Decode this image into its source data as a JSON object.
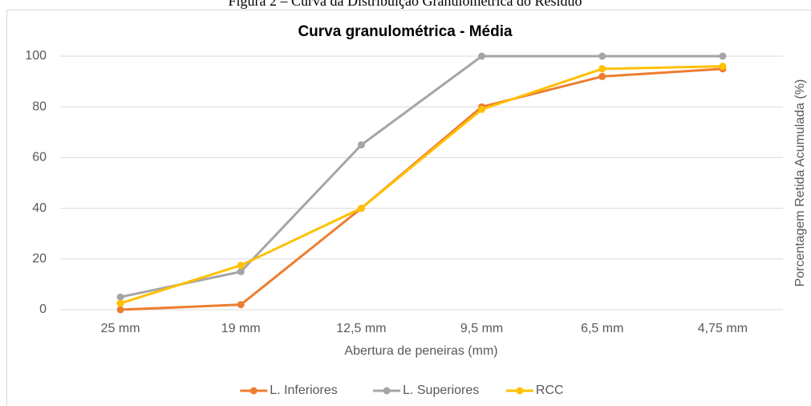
{
  "caption": "Figura 2 – Curva da Distribuição Granulométrica do Resíduo",
  "chart_data": {
    "type": "line",
    "title": "Curva granulométrica - Média",
    "x_label": "Abertura de peneiras (mm)",
    "y_label": "Porcentagem Retida Acumulada  (%)",
    "categories": [
      "25 mm",
      "19 mm",
      "12,5 mm",
      "9,5 mm",
      "6,5 mm",
      "4,75 mm"
    ],
    "series": [
      {
        "name": "L. Inferiores",
        "color": "#ed7d31",
        "values": [
          0,
          2,
          40,
          80,
          92,
          95
        ]
      },
      {
        "name": "L. Superiores",
        "color": "#a5a5a5",
        "values": [
          5,
          15,
          65,
          100,
          100,
          100
        ]
      },
      {
        "name": "RCC",
        "color": "#ffc000",
        "values": [
          2.5,
          17.5,
          40,
          79,
          95,
          96
        ]
      }
    ],
    "ylim": [
      0,
      100
    ],
    "yticks": [
      0,
      20,
      40,
      60,
      80,
      100
    ],
    "grid": true,
    "legend": "bottom"
  }
}
